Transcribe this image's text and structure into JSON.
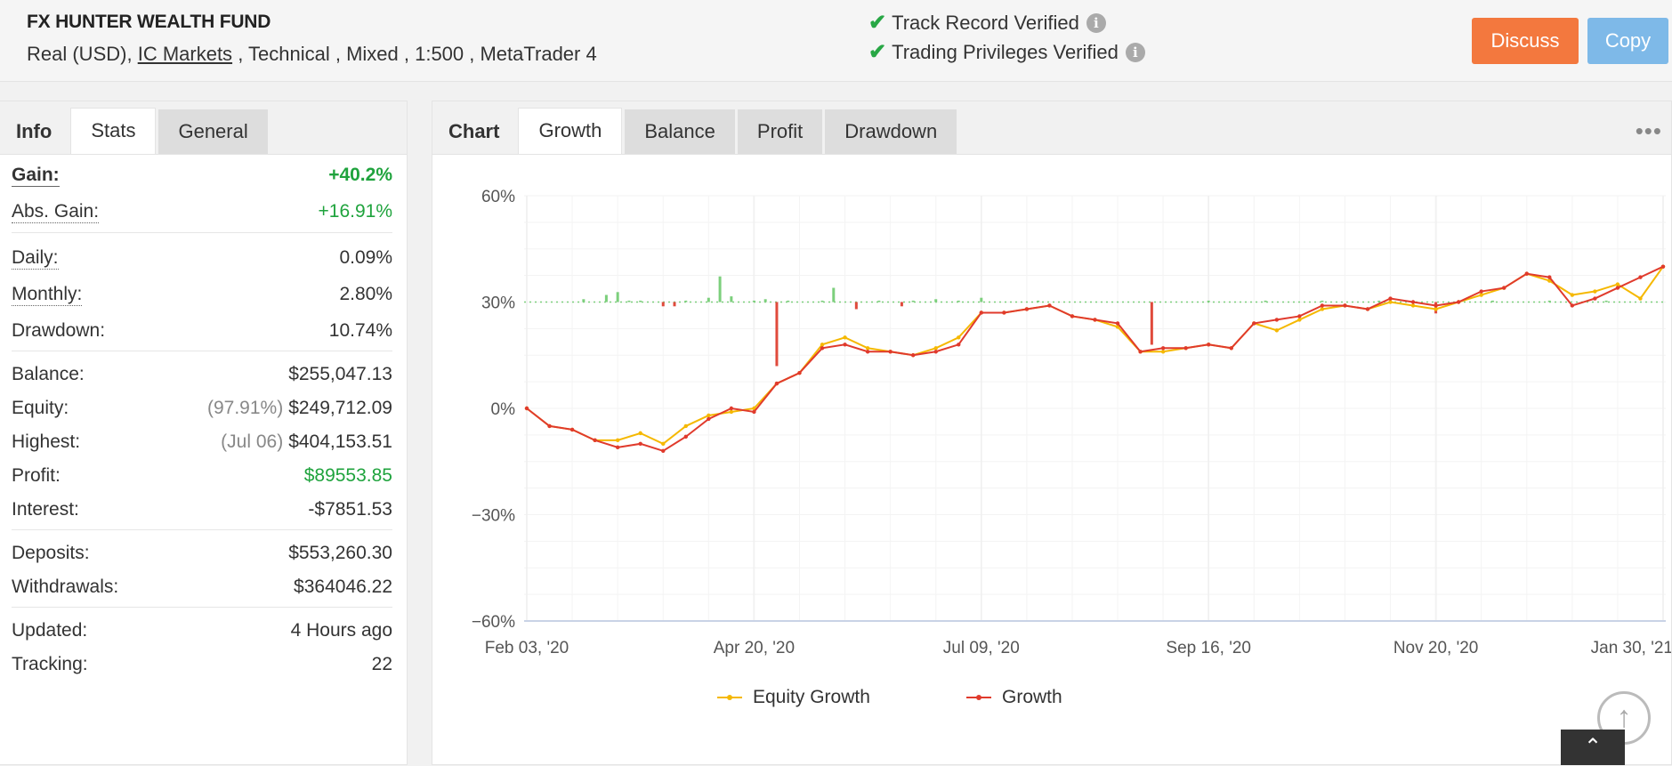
{
  "header": {
    "fund_name": "FX HUNTER WEALTH FUND",
    "meta_prefix": "Real (USD),",
    "broker": "IC Markets",
    "meta_suffix": ", Technical , Mixed , 1:500 , MetaTrader 4",
    "verified": [
      {
        "label": "Track Record Verified"
      },
      {
        "label": "Trading Privileges Verified"
      }
    ],
    "discuss_label": "Discuss",
    "copy_label": "Copy",
    "colors": {
      "discuss": "#f3783e",
      "copy": "#7eb9e8",
      "check": "#28a745"
    }
  },
  "left_tabs": {
    "label": "Info",
    "tabs": [
      "Stats",
      "General"
    ],
    "active": "Stats"
  },
  "stats": {
    "gain": {
      "label": "Gain:",
      "value": "+40.2%"
    },
    "abs_gain": {
      "label": "Abs. Gain:",
      "value": "+16.91%"
    },
    "daily": {
      "label": "Daily:",
      "value": "0.09%"
    },
    "monthly": {
      "label": "Monthly:",
      "value": "2.80%"
    },
    "drawdown": {
      "label": "Drawdown:",
      "value": "10.74%"
    },
    "balance": {
      "label": "Balance:",
      "value": "$255,047.13"
    },
    "equity": {
      "label": "Equity:",
      "sub": "(97.91%)",
      "value": "$249,712.09"
    },
    "highest": {
      "label": "Highest:",
      "sub": "(Jul 06)",
      "value": "$404,153.51"
    },
    "profit": {
      "label": "Profit:",
      "value": "$89553.85"
    },
    "interest": {
      "label": "Interest:",
      "value": "-$7851.53"
    },
    "deposits": {
      "label": "Deposits:",
      "value": "$553,260.30"
    },
    "withdrawals": {
      "label": "Withdrawals:",
      "value": "$364046.22"
    },
    "updated": {
      "label": "Updated:",
      "value": "4 Hours ago"
    },
    "tracking": {
      "label": "Tracking:",
      "value": "22"
    }
  },
  "chart_tabs": {
    "label": "Chart",
    "tabs": [
      "Growth",
      "Balance",
      "Profit",
      "Drawdown"
    ],
    "active": "Growth"
  },
  "chart_data": {
    "type": "line",
    "y_ticks": [
      "60%",
      "30%",
      "0%",
      "−30%",
      "−60%"
    ],
    "ylim": [
      -60,
      60
    ],
    "x_ticks": [
      "Feb 03, '20",
      "Apr 20, '20",
      "Jul 09, '20",
      "Sep 16, '20",
      "Nov 20, '20",
      "Jan 30, '21"
    ],
    "grid": true,
    "legend_position": "bottom",
    "series": [
      {
        "name": "Equity Growth",
        "color": "#f5b800",
        "x": [
          0,
          2,
          4,
          6,
          8,
          10,
          12,
          14,
          16,
          18,
          20,
          22,
          24,
          26,
          28,
          30,
          32,
          34,
          36,
          38,
          40,
          42,
          44,
          46,
          48,
          50,
          52,
          54,
          56,
          58,
          60,
          62,
          64,
          66,
          68,
          70,
          72,
          74,
          76,
          78,
          80,
          82,
          84,
          86,
          88,
          90,
          92,
          94,
          96,
          98,
          100
        ],
        "values": [
          0,
          -5,
          -6,
          -9,
          -9,
          -7,
          -10,
          -5,
          -2,
          -1,
          0,
          7,
          10,
          18,
          20,
          17,
          16,
          15,
          17,
          20,
          27,
          27,
          28,
          29,
          26,
          25,
          23,
          16,
          16,
          17,
          18,
          17,
          24,
          22,
          25,
          28,
          29,
          28,
          30,
          29,
          28,
          30,
          32,
          34,
          38,
          36,
          32,
          33,
          35,
          31,
          40
        ]
      },
      {
        "name": "Growth",
        "color": "#e03a2c",
        "x": [
          0,
          2,
          4,
          6,
          8,
          10,
          12,
          14,
          16,
          18,
          20,
          22,
          24,
          26,
          28,
          30,
          32,
          34,
          36,
          38,
          40,
          42,
          44,
          46,
          48,
          50,
          52,
          54,
          56,
          58,
          60,
          62,
          64,
          66,
          68,
          70,
          72,
          74,
          76,
          78,
          80,
          82,
          84,
          86,
          88,
          90,
          92,
          94,
          96,
          98,
          100
        ],
        "values": [
          0,
          -5,
          -6,
          -9,
          -11,
          -10,
          -12,
          -8,
          -3,
          0,
          -1,
          7,
          10,
          17,
          18,
          16,
          16,
          15,
          16,
          18,
          27,
          27,
          28,
          29,
          26,
          25,
          24,
          16,
          17,
          17,
          18,
          17,
          24,
          25,
          26,
          29,
          29,
          28,
          31,
          30,
          29,
          30,
          33,
          34,
          38,
          37,
          29,
          31,
          34,
          37,
          40
        ]
      },
      {
        "name": "",
        "type": "bar",
        "x": [
          5,
          7,
          8,
          9,
          10,
          12,
          13,
          14,
          16,
          17,
          18,
          20,
          21,
          22,
          23,
          26,
          27,
          29,
          31,
          33,
          34,
          36,
          38,
          40,
          45,
          55,
          60,
          65,
          70,
          75,
          80,
          85,
          90,
          95
        ],
        "values": [
          2,
          5,
          7,
          1,
          1,
          -3,
          -3,
          1,
          3,
          18,
          4,
          1,
          2,
          -45,
          1,
          1,
          10,
          -5,
          1,
          -3,
          1,
          2,
          1,
          3,
          1,
          -30,
          1,
          1,
          1,
          1,
          -8,
          1,
          1,
          1
        ]
      }
    ]
  }
}
